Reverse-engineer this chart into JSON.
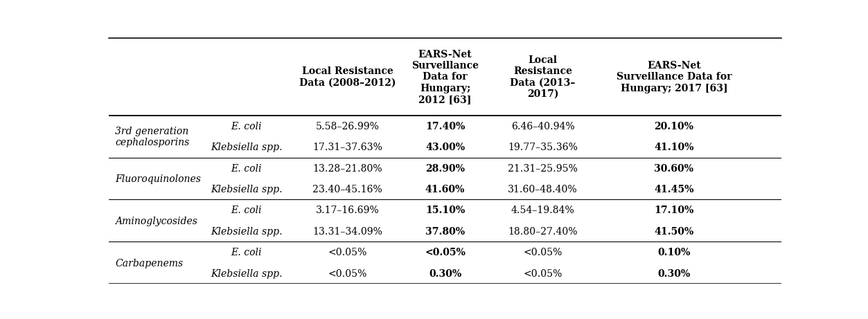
{
  "col_headers": [
    "Local Resistance\nData (2008–2012)",
    "EARS-Net\nSurveillance\nData for\nHungary;\n2012 [63]",
    "Local\nResistance\nData (2013–\n2017)",
    "EARS-Net\nSurveillance Data for\nHungary; 2017 [63]"
  ],
  "groups": [
    {
      "category": "3rd generation\ncephalosporins",
      "rows": [
        {
          "organism": "E. coli",
          "col1": "5.58–26.99%",
          "col2": "17.40%",
          "col3": "6.46–40.94%",
          "col4": "20.10%"
        },
        {
          "organism": "Klebsiella spp.",
          "col1": "17.31–37.63%",
          "col2": "43.00%",
          "col3": "19.77–35.36%",
          "col4": "41.10%"
        }
      ]
    },
    {
      "category": "Fluoroquinolones",
      "rows": [
        {
          "organism": "E. coli",
          "col1": "13.28–21.80%",
          "col2": "28.90%",
          "col3": "21.31–25.95%",
          "col4": "30.60%"
        },
        {
          "organism": "Klebsiella spp.",
          "col1": "23.40–45.16%",
          "col2": "41.60%",
          "col3": "31.60–48.40%",
          "col4": "41.45%"
        }
      ]
    },
    {
      "category": "Aminoglycosides",
      "rows": [
        {
          "organism": "E. coli",
          "col1": "3.17–16.69%",
          "col2": "15.10%",
          "col3": "4.54–19.84%",
          "col4": "17.10%"
        },
        {
          "organism": "Klebsiella spp.",
          "col1": "13.31–34.09%",
          "col2": "37.80%",
          "col3": "18.80–27.40%",
          "col4": "41.50%"
        }
      ]
    },
    {
      "category": "Carbapenems",
      "rows": [
        {
          "organism": "E. coli",
          "col1": "<0.05%",
          "col2": "<0.05%",
          "col3": "<0.05%",
          "col4": "0.10%"
        },
        {
          "organism": "Klebsiella spp.",
          "col1": "<0.05%",
          "col2": "0.30%",
          "col3": "<0.05%",
          "col4": "0.30%"
        }
      ]
    }
  ],
  "bg_color": "#ffffff",
  "text_color": "#000000",
  "line_color": "#000000",
  "header_fontsize": 10.5,
  "cell_fontsize": 10.5,
  "figsize": [
    13.06,
    4.81
  ],
  "dpi": 96
}
